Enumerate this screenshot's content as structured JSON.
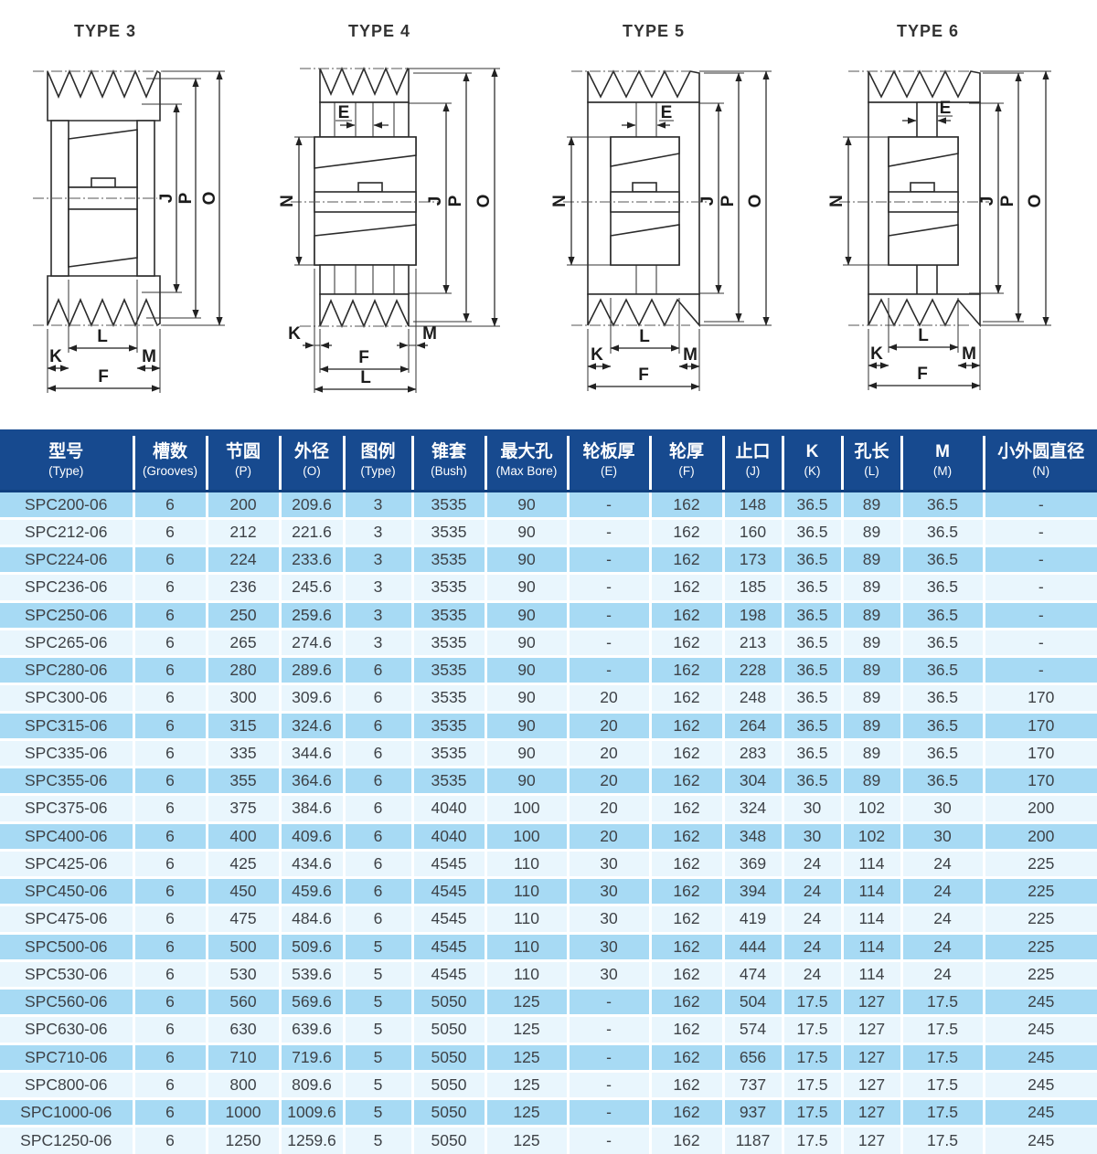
{
  "drawings": [
    {
      "title": "TYPE 3",
      "dims": {
        "J": "J",
        "P": "P",
        "O": "O",
        "L": "L",
        "K": "K",
        "M": "M",
        "F": "F"
      }
    },
    {
      "title": "TYPE 4",
      "dims": {
        "E": "E",
        "N": "N",
        "J": "J",
        "P": "P",
        "O": "O",
        "K": "K",
        "M": "M",
        "F": "F",
        "L": "L"
      }
    },
    {
      "title": "TYPE 5",
      "dims": {
        "E": "E",
        "N": "N",
        "J": "J",
        "P": "P",
        "O": "O",
        "L": "L",
        "K": "K",
        "M": "M",
        "F": "F"
      }
    },
    {
      "title": "TYPE 6",
      "dims": {
        "E": "E",
        "N": "N",
        "J": "J",
        "P": "P",
        "O": "O",
        "L": "L",
        "K": "K",
        "M": "M",
        "F": "F"
      }
    }
  ],
  "table": {
    "columns": [
      {
        "zh": "型号",
        "en": "(Type)"
      },
      {
        "zh": "槽数",
        "en": "(Grooves)"
      },
      {
        "zh": "节圆",
        "en": "(P)"
      },
      {
        "zh": "外径",
        "en": "(O)"
      },
      {
        "zh": "图例",
        "en": "(Type)"
      },
      {
        "zh": "锥套",
        "en": "(Bush)"
      },
      {
        "zh": "最大孔",
        "en": "(Max Bore)"
      },
      {
        "zh": "轮板厚",
        "en": "(E)"
      },
      {
        "zh": "轮厚",
        "en": "(F)"
      },
      {
        "zh": "止口",
        "en": "(J)"
      },
      {
        "zh": "K",
        "en": "(K)"
      },
      {
        "zh": "孔长",
        "en": "(L)"
      },
      {
        "zh": "M",
        "en": "(M)"
      },
      {
        "zh": "小外圆直径",
        "en": "(N)"
      }
    ],
    "rows": [
      [
        "SPC200-06",
        "6",
        "200",
        "209.6",
        "3",
        "3535",
        "90",
        "-",
        "162",
        "148",
        "36.5",
        "89",
        "36.5",
        "-"
      ],
      [
        "SPC212-06",
        "6",
        "212",
        "221.6",
        "3",
        "3535",
        "90",
        "-",
        "162",
        "160",
        "36.5",
        "89",
        "36.5",
        "-"
      ],
      [
        "SPC224-06",
        "6",
        "224",
        "233.6",
        "3",
        "3535",
        "90",
        "-",
        "162",
        "173",
        "36.5",
        "89",
        "36.5",
        "-"
      ],
      [
        "SPC236-06",
        "6",
        "236",
        "245.6",
        "3",
        "3535",
        "90",
        "-",
        "162",
        "185",
        "36.5",
        "89",
        "36.5",
        "-"
      ],
      [
        "SPC250-06",
        "6",
        "250",
        "259.6",
        "3",
        "3535",
        "90",
        "-",
        "162",
        "198",
        "36.5",
        "89",
        "36.5",
        "-"
      ],
      [
        "SPC265-06",
        "6",
        "265",
        "274.6",
        "3",
        "3535",
        "90",
        "-",
        "162",
        "213",
        "36.5",
        "89",
        "36.5",
        "-"
      ],
      [
        "SPC280-06",
        "6",
        "280",
        "289.6",
        "6",
        "3535",
        "90",
        "-",
        "162",
        "228",
        "36.5",
        "89",
        "36.5",
        "-"
      ],
      [
        "SPC300-06",
        "6",
        "300",
        "309.6",
        "6",
        "3535",
        "90",
        "20",
        "162",
        "248",
        "36.5",
        "89",
        "36.5",
        "170"
      ],
      [
        "SPC315-06",
        "6",
        "315",
        "324.6",
        "6",
        "3535",
        "90",
        "20",
        "162",
        "264",
        "36.5",
        "89",
        "36.5",
        "170"
      ],
      [
        "SPC335-06",
        "6",
        "335",
        "344.6",
        "6",
        "3535",
        "90",
        "20",
        "162",
        "283",
        "36.5",
        "89",
        "36.5",
        "170"
      ],
      [
        "SPC355-06",
        "6",
        "355",
        "364.6",
        "6",
        "3535",
        "90",
        "20",
        "162",
        "304",
        "36.5",
        "89",
        "36.5",
        "170"
      ],
      [
        "SPC375-06",
        "6",
        "375",
        "384.6",
        "6",
        "4040",
        "100",
        "20",
        "162",
        "324",
        "30",
        "102",
        "30",
        "200"
      ],
      [
        "SPC400-06",
        "6",
        "400",
        "409.6",
        "6",
        "4040",
        "100",
        "20",
        "162",
        "348",
        "30",
        "102",
        "30",
        "200"
      ],
      [
        "SPC425-06",
        "6",
        "425",
        "434.6",
        "6",
        "4545",
        "110",
        "30",
        "162",
        "369",
        "24",
        "114",
        "24",
        "225"
      ],
      [
        "SPC450-06",
        "6",
        "450",
        "459.6",
        "6",
        "4545",
        "110",
        "30",
        "162",
        "394",
        "24",
        "114",
        "24",
        "225"
      ],
      [
        "SPC475-06",
        "6",
        "475",
        "484.6",
        "6",
        "4545",
        "110",
        "30",
        "162",
        "419",
        "24",
        "114",
        "24",
        "225"
      ],
      [
        "SPC500-06",
        "6",
        "500",
        "509.6",
        "5",
        "4545",
        "110",
        "30",
        "162",
        "444",
        "24",
        "114",
        "24",
        "225"
      ],
      [
        "SPC530-06",
        "6",
        "530",
        "539.6",
        "5",
        "4545",
        "110",
        "30",
        "162",
        "474",
        "24",
        "114",
        "24",
        "225"
      ],
      [
        "SPC560-06",
        "6",
        "560",
        "569.6",
        "5",
        "5050",
        "125",
        "-",
        "162",
        "504",
        "17.5",
        "127",
        "17.5",
        "245"
      ],
      [
        "SPC630-06",
        "6",
        "630",
        "639.6",
        "5",
        "5050",
        "125",
        "-",
        "162",
        "574",
        "17.5",
        "127",
        "17.5",
        "245"
      ],
      [
        "SPC710-06",
        "6",
        "710",
        "719.6",
        "5",
        "5050",
        "125",
        "-",
        "162",
        "656",
        "17.5",
        "127",
        "17.5",
        "245"
      ],
      [
        "SPC800-06",
        "6",
        "800",
        "809.6",
        "5",
        "5050",
        "125",
        "-",
        "162",
        "737",
        "17.5",
        "127",
        "17.5",
        "245"
      ],
      [
        "SPC1000-06",
        "6",
        "1000",
        "1009.6",
        "5",
        "5050",
        "125",
        "-",
        "162",
        "937",
        "17.5",
        "127",
        "17.5",
        "245"
      ],
      [
        "SPC1250-06",
        "6",
        "1250",
        "1259.6",
        "5",
        "5050",
        "125",
        "-",
        "162",
        "1187",
        "17.5",
        "127",
        "17.5",
        "245"
      ]
    ],
    "colors": {
      "header_bg": "#174A8F",
      "header_divider": "#10407E",
      "row_odd": "#A7DAF4",
      "row_even": "#E9F6FD",
      "header_text": "#FFFFFF",
      "cell_text": "#3E4247"
    }
  }
}
